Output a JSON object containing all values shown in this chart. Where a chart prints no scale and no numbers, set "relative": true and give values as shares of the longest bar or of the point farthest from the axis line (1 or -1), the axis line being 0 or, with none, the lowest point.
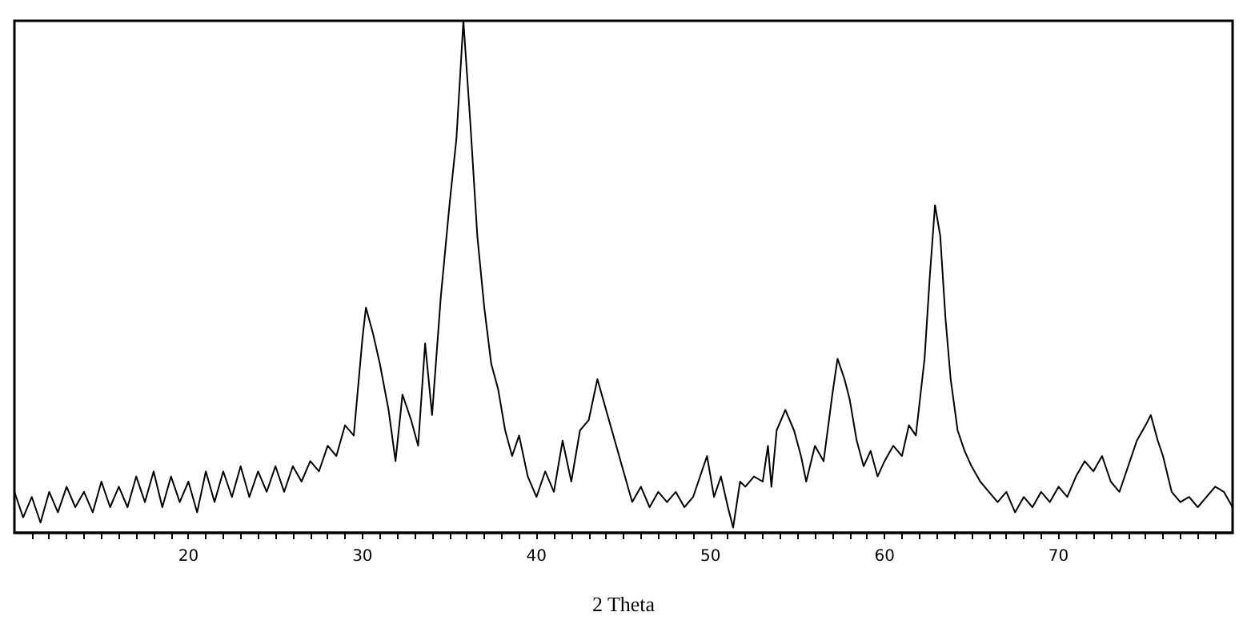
{
  "chart_data": {
    "type": "line",
    "xlabel": "2 Theta",
    "relative": true,
    "color": "#000000",
    "grid": false,
    "marker": "none",
    "line_style": "solid",
    "xlim": [
      10,
      80
    ],
    "xticks": [
      {
        "value": 11,
        "label": null
      },
      {
        "value": 12,
        "label": null
      },
      {
        "value": 13,
        "label": null
      },
      {
        "value": 14,
        "label": null
      },
      {
        "value": 15,
        "label": null
      },
      {
        "value": 16,
        "label": null
      },
      {
        "value": 17,
        "label": null
      },
      {
        "value": 18,
        "label": null
      },
      {
        "value": 19,
        "label": null
      },
      20,
      {
        "value": 21,
        "label": null
      },
      {
        "value": 22,
        "label": null
      },
      {
        "value": 23,
        "label": null
      },
      {
        "value": 24,
        "label": null
      },
      {
        "value": 25,
        "label": null
      },
      {
        "value": 26,
        "label": null
      },
      {
        "value": 27,
        "label": null
      },
      {
        "value": 28,
        "label": null
      },
      {
        "value": 29,
        "label": null
      },
      30,
      {
        "value": 31,
        "label": null
      },
      {
        "value": 32,
        "label": null
      },
      {
        "value": 33,
        "label": null
      },
      {
        "value": 34,
        "label": null
      },
      {
        "value": 35,
        "label": null
      },
      {
        "value": 36,
        "label": null
      },
      {
        "value": 37,
        "label": null
      },
      {
        "value": 38,
        "label": null
      },
      {
        "value": 39,
        "label": null
      },
      40,
      {
        "value": 41,
        "label": null
      },
      {
        "value": 42,
        "label": null
      },
      {
        "value": 43,
        "label": null
      },
      {
        "value": 44,
        "label": null
      },
      {
        "value": 45,
        "label": null
      },
      {
        "value": 46,
        "label": null
      },
      {
        "value": 47,
        "label": null
      },
      {
        "value": 48,
        "label": null
      },
      {
        "value": 49,
        "label": null
      },
      50,
      {
        "value": 51,
        "label": null
      },
      {
        "value": 52,
        "label": null
      },
      {
        "value": 53,
        "label": null
      },
      {
        "value": 54,
        "label": null
      },
      {
        "value": 55,
        "label": null
      },
      {
        "value": 56,
        "label": null
      },
      {
        "value": 57,
        "label": null
      },
      {
        "value": 58,
        "label": null
      },
      {
        "value": 59,
        "label": null
      },
      60,
      {
        "value": 61,
        "label": null
      },
      {
        "value": 62,
        "label": null
      },
      {
        "value": 63,
        "label": null
      },
      {
        "value": 64,
        "label": null
      },
      {
        "value": 65,
        "label": null
      },
      {
        "value": 66,
        "label": null
      },
      {
        "value": 67,
        "label": null
      },
      {
        "value": 68,
        "label": null
      },
      {
        "value": 69,
        "label": null
      },
      70,
      {
        "value": 71,
        "label": null
      },
      {
        "value": 72,
        "label": null
      },
      {
        "value": 73,
        "label": null
      },
      {
        "value": 74,
        "label": null
      },
      {
        "value": 75,
        "label": null
      },
      {
        "value": 76,
        "label": null
      },
      {
        "value": 77,
        "label": null
      },
      {
        "value": 78,
        "label": null
      },
      {
        "value": 79,
        "label": null
      }
    ],
    "x": [
      10,
      10.5,
      11,
      11.5,
      12,
      12.5,
      13,
      13.5,
      14,
      14.5,
      15,
      15.5,
      16,
      16.5,
      17,
      17.5,
      18,
      18.5,
      19,
      19.5,
      20,
      20.5,
      21,
      21.5,
      22,
      22.5,
      23,
      23.5,
      24,
      24.5,
      25,
      25.5,
      26,
      26.5,
      27,
      27.5,
      28,
      28.5,
      29,
      29.5,
      30,
      30.2,
      30.6,
      31,
      31.5,
      31.9,
      32.3,
      32.8,
      33.2,
      33.6,
      34,
      34.5,
      35,
      35.4,
      35.8,
      36.2,
      36.6,
      37,
      37.4,
      37.8,
      38.2,
      38.6,
      39,
      39.5,
      40,
      40.5,
      41,
      41.5,
      42,
      42.5,
      43,
      43.5,
      44,
      44.5,
      45,
      45.5,
      46,
      46.5,
      47,
      47.5,
      48,
      48.5,
      49,
      49.8,
      50.2,
      50.6,
      51,
      51.3,
      51.7,
      52,
      52.5,
      53,
      53.3,
      53.5,
      53.8,
      54.3,
      54.8,
      55.2,
      55.5,
      56,
      56.5,
      57,
      57.3,
      57.7,
      58,
      58.4,
      58.8,
      59.2,
      59.6,
      60,
      60.5,
      61,
      61.4,
      61.8,
      62,
      62.3,
      62.6,
      62.9,
      63.2,
      63.5,
      63.8,
      64.2,
      64.6,
      65,
      65.5,
      66,
      66.5,
      67,
      67.5,
      68,
      68.5,
      69,
      69.5,
      70,
      70.5,
      71,
      71.5,
      72,
      72.5,
      73,
      73.5,
      74,
      74.5,
      75,
      75.3,
      75.7,
      76,
      76.5,
      77,
      77.5,
      78,
      78.5,
      79,
      79.5,
      80
    ],
    "values": [
      0.08,
      0.03,
      0.07,
      0.02,
      0.08,
      0.04,
      0.09,
      0.05,
      0.08,
      0.04,
      0.1,
      0.05,
      0.09,
      0.05,
      0.11,
      0.06,
      0.12,
      0.05,
      0.11,
      0.06,
      0.1,
      0.04,
      0.12,
      0.06,
      0.12,
      0.07,
      0.13,
      0.07,
      0.12,
      0.08,
      0.13,
      0.08,
      0.13,
      0.1,
      0.14,
      0.12,
      0.17,
      0.15,
      0.21,
      0.19,
      0.38,
      0.44,
      0.39,
      0.33,
      0.24,
      0.14,
      0.27,
      0.22,
      0.17,
      0.37,
      0.23,
      0.46,
      0.64,
      0.77,
      1.0,
      0.8,
      0.58,
      0.44,
      0.33,
      0.28,
      0.2,
      0.15,
      0.19,
      0.11,
      0.07,
      0.12,
      0.08,
      0.18,
      0.1,
      0.2,
      0.22,
      0.3,
      0.24,
      0.18,
      0.12,
      0.06,
      0.09,
      0.05,
      0.08,
      0.06,
      0.08,
      0.05,
      0.07,
      0.15,
      0.07,
      0.11,
      0.05,
      0.01,
      0.1,
      0.09,
      0.11,
      0.1,
      0.17,
      0.09,
      0.2,
      0.24,
      0.2,
      0.15,
      0.1,
      0.17,
      0.14,
      0.27,
      0.34,
      0.3,
      0.26,
      0.18,
      0.13,
      0.16,
      0.11,
      0.14,
      0.17,
      0.15,
      0.21,
      0.19,
      0.25,
      0.34,
      0.5,
      0.64,
      0.58,
      0.42,
      0.3,
      0.2,
      0.16,
      0.13,
      0.1,
      0.08,
      0.06,
      0.08,
      0.04,
      0.07,
      0.05,
      0.08,
      0.06,
      0.09,
      0.07,
      0.11,
      0.14,
      0.12,
      0.15,
      0.1,
      0.08,
      0.13,
      0.18,
      0.21,
      0.23,
      0.18,
      0.15,
      0.08,
      0.06,
      0.07,
      0.05,
      0.07,
      0.09,
      0.08,
      0.05
    ]
  }
}
